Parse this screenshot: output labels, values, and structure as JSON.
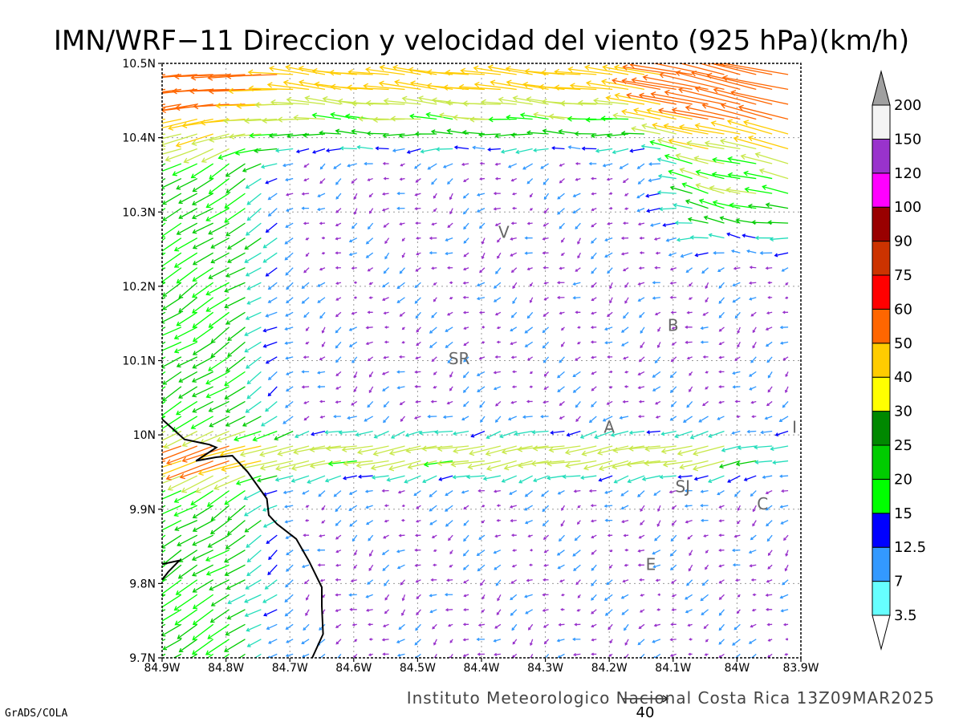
{
  "chart_data": {
    "type": "vector_field_map",
    "title": "IMN/WRF−11 Direccion y velocidad del viento (925 hPa)(km/h)",
    "lon_ticks": [
      {
        "v": -84.9,
        "label": "84.9W"
      },
      {
        "v": -84.8,
        "label": "84.8W"
      },
      {
        "v": -84.7,
        "label": "84.7W"
      },
      {
        "v": -84.6,
        "label": "84.6W"
      },
      {
        "v": -84.5,
        "label": "84.5W"
      },
      {
        "v": -84.4,
        "label": "84.4W"
      },
      {
        "v": -84.3,
        "label": "84.3W"
      },
      {
        "v": -84.2,
        "label": "84.2W"
      },
      {
        "v": -84.1,
        "label": "84.1W"
      },
      {
        "v": -84.0,
        "label": "84W"
      },
      {
        "v": -83.9,
        "label": "83.9W"
      }
    ],
    "lat_ticks": [
      {
        "v": 9.7,
        "label": "9.7N"
      },
      {
        "v": 9.8,
        "label": "9.8N"
      },
      {
        "v": 9.9,
        "label": "9.9N"
      },
      {
        "v": 10.0,
        "label": "10N"
      },
      {
        "v": 10.1,
        "label": "10.1N"
      },
      {
        "v": 10.2,
        "label": "10.2N"
      },
      {
        "v": 10.3,
        "label": "10.3N"
      },
      {
        "v": 10.4,
        "label": "10.4N"
      },
      {
        "v": 10.5,
        "label": "10.5N"
      }
    ],
    "xlim": [
      -84.9,
      -83.9
    ],
    "ylim": [
      9.7,
      10.5
    ],
    "grid": true,
    "colorbar": {
      "levels": [
        "3.5",
        "7",
        "12.5",
        "15",
        "20",
        "25",
        "30",
        "40",
        "50",
        "60",
        "75",
        "90",
        "100",
        "120",
        "150",
        "200"
      ],
      "colors": [
        "#66ffff",
        "#3399ff",
        "#0000ff",
        "#00ff00",
        "#00cc00",
        "#008800",
        "#ffff00",
        "#ffcc00",
        "#ff6600",
        "#ff0000",
        "#cc3300",
        "#990000",
        "#ff00ff",
        "#9933cc",
        "#f4f4f4",
        "#a0a0a0"
      ]
    },
    "places": [
      {
        "label": "V",
        "lon": -84.365,
        "lat": 10.265
      },
      {
        "label": "SR",
        "lon": -84.435,
        "lat": 10.095
      },
      {
        "label": "B",
        "lon": -84.1,
        "lat": 10.14
      },
      {
        "label": "A",
        "lon": -84.2,
        "lat": 10.003
      },
      {
        "label": "I",
        "lon": -83.91,
        "lat": 10.003
      },
      {
        "label": "SJ",
        "lon": -84.085,
        "lat": 9.923
      },
      {
        "label": "C",
        "lon": -83.96,
        "lat": 9.9
      },
      {
        "label": "E",
        "lon": -84.135,
        "lat": 9.818
      }
    ],
    "coastline": [
      [
        -84.9,
        10.021
      ],
      [
        -84.865,
        9.994
      ],
      [
        -84.826,
        9.987
      ],
      [
        -84.815,
        9.983
      ],
      [
        -84.847,
        9.965
      ],
      [
        -84.815,
        9.97
      ],
      [
        -84.79,
        9.972
      ],
      [
        -84.766,
        9.95
      ],
      [
        -84.736,
        9.914
      ],
      [
        -84.733,
        9.892
      ],
      [
        -84.72,
        9.88
      ],
      [
        -84.69,
        9.86
      ],
      [
        -84.67,
        9.83
      ],
      [
        -84.65,
        9.795
      ],
      [
        -84.65,
        9.77
      ],
      [
        -84.648,
        9.732
      ],
      [
        -84.665,
        9.7
      ]
    ],
    "coastline_west": [
      [
        -84.9,
        9.805
      ],
      [
        -84.89,
        9.816
      ],
      [
        -84.873,
        9.831
      ],
      [
        -84.9,
        9.826
      ]
    ],
    "reference_vector": {
      "label": "40",
      "speed": 40
    },
    "credit": "Instituto Meteorologico Nacional Costa Rica 13Z09MAR2025",
    "software": "GrADS/COLA"
  }
}
